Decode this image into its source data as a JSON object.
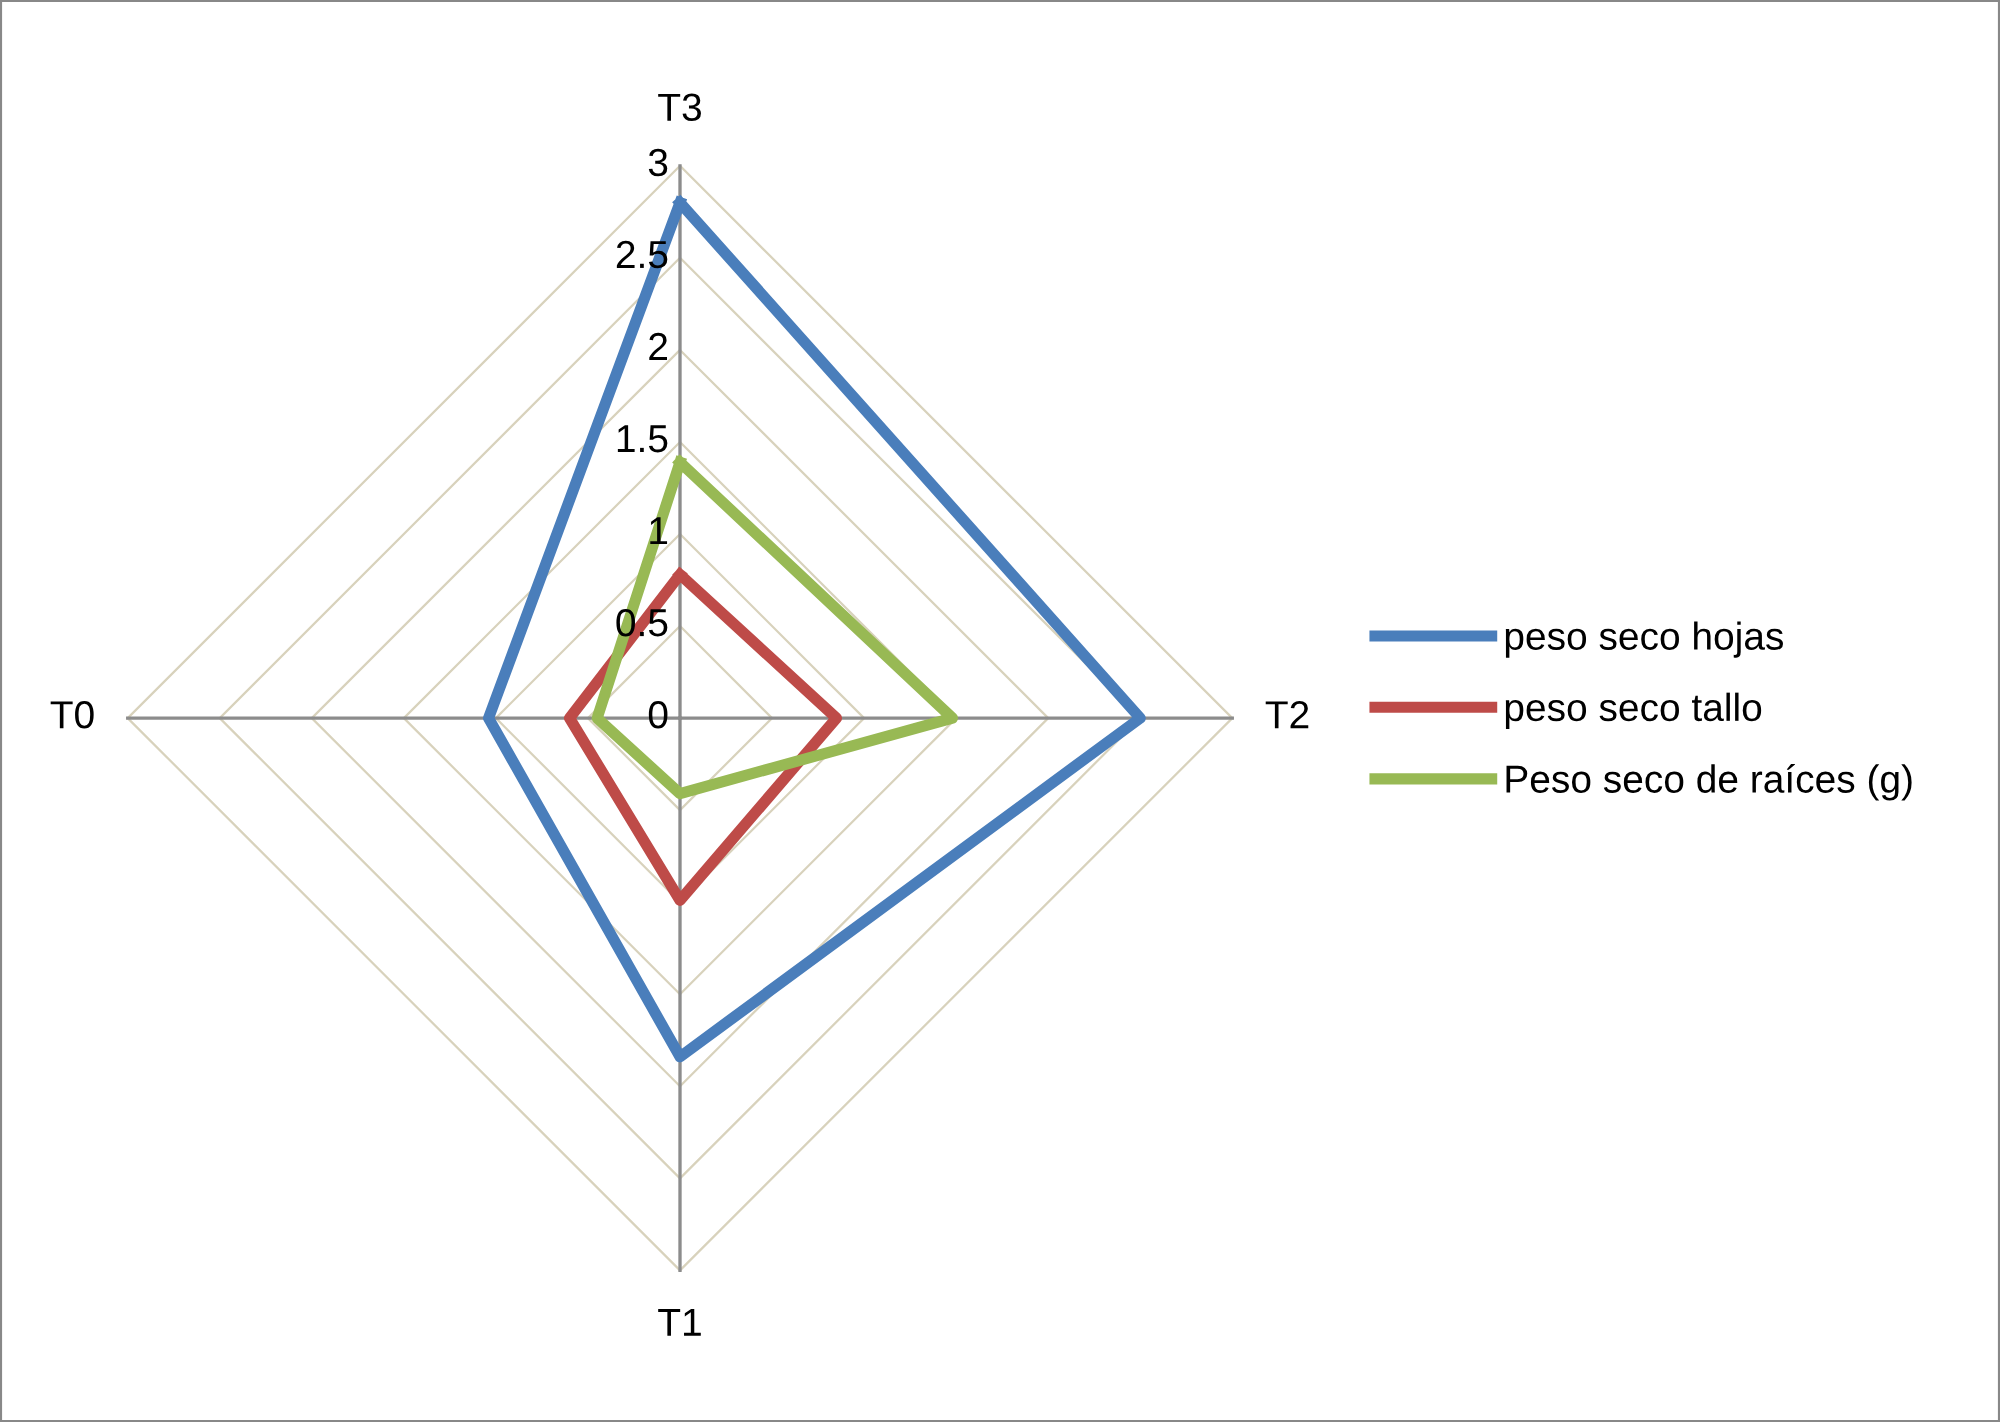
{
  "chart_data": {
    "type": "radar",
    "categories": [
      "T3",
      "T2",
      "T1",
      "T0"
    ],
    "ylim": [
      0,
      3
    ],
    "yticks": [
      0,
      0.5,
      1,
      1.5,
      2,
      2.5,
      3
    ],
    "grid": true,
    "legend": "right",
    "series": [
      {
        "name": "peso seco hojas",
        "color": "#4a7ebb",
        "values": [
          2.8,
          2.5,
          1.84,
          1.04
        ]
      },
      {
        "name": "peso seco tallo",
        "color": "#be4b48",
        "values": [
          0.78,
          0.85,
          0.99,
          0.6
        ]
      },
      {
        "name": "Peso seco de raíces (g)",
        "color": "#98b954",
        "values": [
          1.39,
          1.48,
          0.41,
          0.45
        ]
      }
    ]
  }
}
